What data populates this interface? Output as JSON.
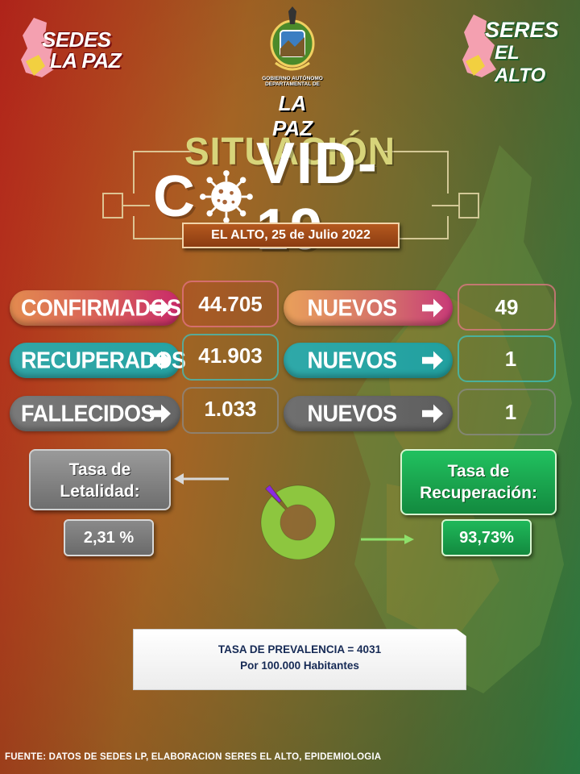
{
  "logos": {
    "left": {
      "line1": "SEDES",
      "line2": "LA PAZ"
    },
    "center": {
      "line1": "GOBIERNO AUTÓNOMO",
      "line2": "DEPARTAMENTAL DE",
      "line3": "LA PAZ"
    },
    "right": {
      "line1": "SERES",
      "line2": "EL ALTO"
    }
  },
  "header": {
    "title_top": "SITUACIÓN",
    "title_main_left": "C",
    "title_main_right": "VID-19",
    "date": "EL ALTO, 25 de Julio 2022"
  },
  "stats": {
    "confirmados": {
      "label": "CONFIRMADOS",
      "value": "44.705",
      "nuevos_label": "NUEVOS",
      "nuevos_value": "49"
    },
    "recuperados": {
      "label": "RECUPERADOS",
      "value": "41.903",
      "nuevos_label": "NUEVOS",
      "nuevos_value": "1"
    },
    "fallecidos": {
      "label": "FALLECIDOS",
      "value": "1.033",
      "nuevos_label": "NUEVOS",
      "nuevos_value": "1"
    }
  },
  "rates": {
    "letalidad": {
      "label_line1": "Tasa de",
      "label_line2": "Letalidad:",
      "value": "2,31 %"
    },
    "recuperacion": {
      "label_line1": "Tasa de",
      "label_line2": "Recuperación:",
      "value": "93,73%"
    }
  },
  "chart_data": {
    "type": "pie",
    "categories": [
      "Letalidad",
      "Recuperación"
    ],
    "values": [
      2.31,
      93.73
    ],
    "colors": [
      "#8a2be2",
      "#8dc63f"
    ]
  },
  "prevalence": {
    "line1": "TASA DE PREVALENCIA = 4031",
    "line2": "Por 100.000 Habitantes"
  },
  "footer": {
    "source": "FUENTE: DATOS DE SEDES LP, ELABORACION SERES EL ALTO, EPIDEMIOLOGIA"
  }
}
